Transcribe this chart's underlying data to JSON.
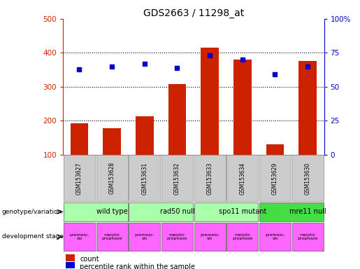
{
  "title": "GDS2663 / 11298_at",
  "samples": [
    "GSM153627",
    "GSM153628",
    "GSM153631",
    "GSM153632",
    "GSM153633",
    "GSM153634",
    "GSM153629",
    "GSM153630"
  ],
  "counts": [
    192,
    178,
    213,
    307,
    415,
    380,
    130,
    375
  ],
  "percentile_ranks": [
    63,
    65,
    67,
    64,
    73,
    70,
    59,
    65
  ],
  "ylim_left": [
    100,
    500
  ],
  "ylim_right": [
    0,
    100
  ],
  "yticks_left": [
    100,
    200,
    300,
    400,
    500
  ],
  "yticks_right": [
    0,
    25,
    50,
    75,
    100
  ],
  "ytick_labels_right": [
    "0",
    "25",
    "50",
    "75",
    "100%"
  ],
  "bar_color": "#cc2200",
  "point_color": "#0000cc",
  "grid_color": "#000000",
  "bg_color": "#ffffff",
  "left_axis_color": "#cc2200",
  "right_axis_color": "#0000cc",
  "genotype_groups": [
    {
      "label": "wild type",
      "start": 0,
      "end": 2,
      "color": "#aaffaa"
    },
    {
      "label": "rad50 null",
      "start": 2,
      "end": 4,
      "color": "#aaffaa"
    },
    {
      "label": "spo11 mutant",
      "start": 4,
      "end": 6,
      "color": "#aaffaa"
    },
    {
      "label": "mre11 null",
      "start": 6,
      "end": 8,
      "color": "#44dd44"
    }
  ],
  "dev_stages": [
    {
      "label": "premeio-\nsis",
      "idx": 0,
      "color": "#ff66ff"
    },
    {
      "label": "meiotic\nprophase",
      "idx": 1,
      "color": "#ff66ff"
    },
    {
      "label": "premeio-\nsis",
      "idx": 2,
      "color": "#ff66ff"
    },
    {
      "label": "meiotic\nprophase",
      "idx": 3,
      "color": "#ff66ff"
    },
    {
      "label": "premeio-\nsis",
      "idx": 4,
      "color": "#ff66ff"
    },
    {
      "label": "meiotic\nprophase",
      "idx": 5,
      "color": "#ff66ff"
    },
    {
      "label": "premeio-\nsis",
      "idx": 6,
      "color": "#ff66ff"
    },
    {
      "label": "meiotic\nprophase",
      "idx": 7,
      "color": "#ff66ff"
    }
  ],
  "sample_box_color": "#cccccc",
  "legend_count_color": "#cc2200",
  "legend_pct_color": "#0000cc",
  "legend_count_label": "count",
  "legend_pct_label": "percentile rank within the sample",
  "genotype_label": "genotype/variation",
  "devstage_label": "development stage"
}
